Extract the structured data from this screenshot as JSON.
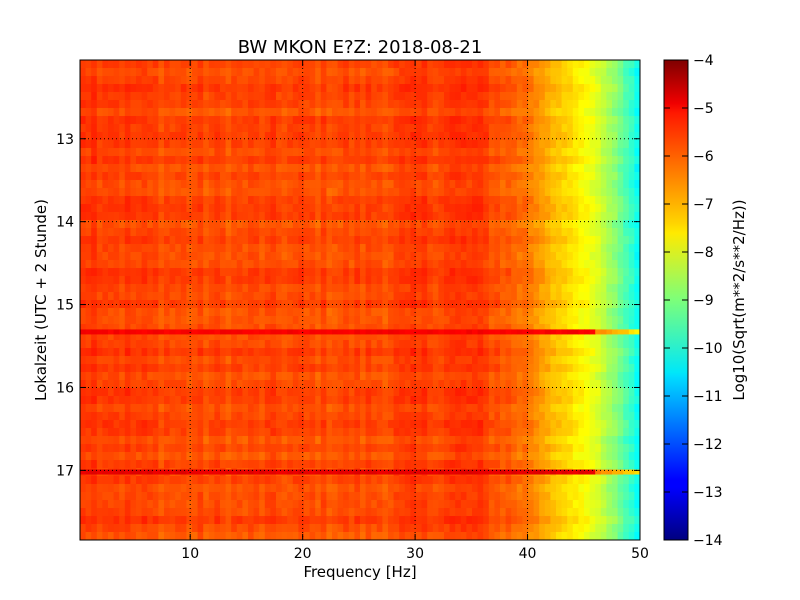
{
  "chart_data": {
    "type": "heatmap",
    "title": "BW MKON E?Z: 2018-08-21",
    "xlabel": "Frequency [Hz]",
    "ylabel": "Lokalzeit (UTC + 2 Stunde)",
    "xlim": [
      0.2,
      50
    ],
    "ylim": [
      17.84,
      12.05
    ],
    "x_ticks": [
      10,
      20,
      30,
      40,
      50
    ],
    "y_ticks": [
      13,
      14,
      15,
      16,
      17
    ],
    "grid": true,
    "colorbar": {
      "label": "Log10(Sqrt(m**2/s**2/Hz))",
      "range": [
        -14,
        -4
      ],
      "ticks": [
        -4,
        -5,
        -6,
        -7,
        -8,
        -9,
        -10,
        -11,
        -12,
        -13,
        -14
      ],
      "colormap": "jet"
    },
    "value_profile_by_frequency": {
      "x": [
        0,
        5,
        10,
        15,
        20,
        25,
        30,
        35,
        38,
        40,
        41,
        42,
        43,
        44,
        45,
        46,
        47,
        48,
        49,
        50
      ],
      "values": [
        -5.7,
        -5.9,
        -6.0,
        -6.0,
        -6.0,
        -6.0,
        -5.9,
        -5.8,
        -6.1,
        -6.4,
        -6.7,
        -7.0,
        -7.3,
        -7.5,
        -7.8,
        -8.0,
        -8.5,
        -9.0,
        -9.6,
        -10.3
      ]
    },
    "high_power_bands": [
      {
        "time": 15.33,
        "intensity": -5.2
      },
      {
        "time": 17.02,
        "intensity": -5.0
      }
    ]
  }
}
